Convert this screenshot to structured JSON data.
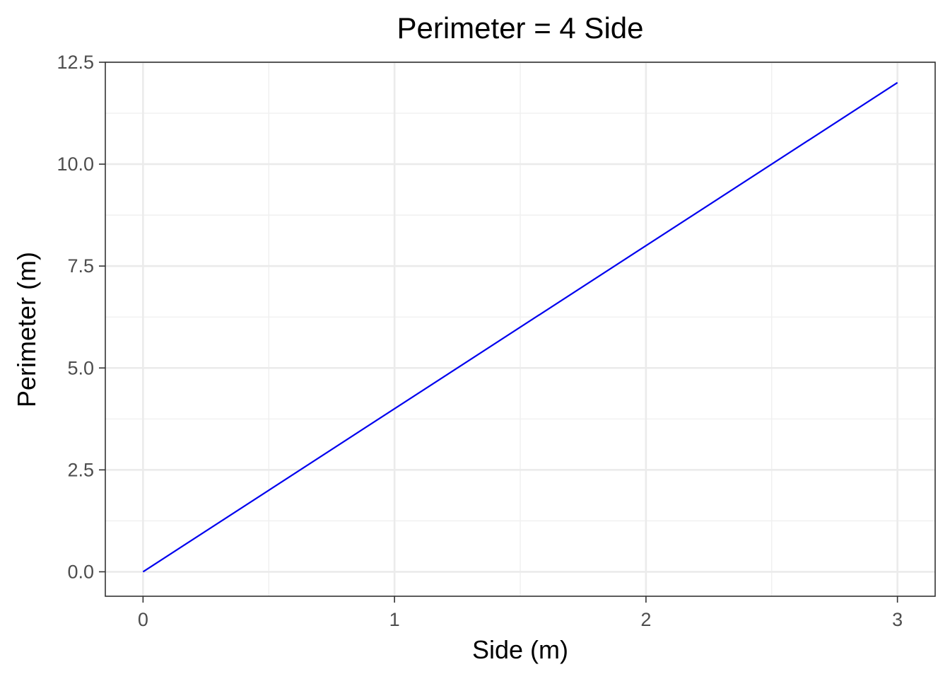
{
  "chart_data": {
    "type": "line",
    "title": "Perimeter = 4 Side",
    "xlabel": "Side (m)",
    "ylabel": "Perimeter (m)",
    "xlim": [
      -0.15,
      3.15
    ],
    "ylim": [
      -0.6,
      12.5
    ],
    "x_ticks": [
      0,
      1,
      2,
      3
    ],
    "x_tick_labels": [
      "0",
      "1",
      "2",
      "3"
    ],
    "y_ticks": [
      0,
      2.5,
      5,
      7.5,
      10,
      12.5
    ],
    "y_tick_labels": [
      "0.0",
      "2.5",
      "5.0",
      "7.5",
      "10.0",
      "12.5"
    ],
    "x_minor_ticks": [
      0.5,
      1.5,
      2.5
    ],
    "y_minor_ticks": [
      1.25,
      3.75,
      6.25,
      8.75,
      11.25
    ],
    "grid": true,
    "series": [
      {
        "color": "#0000ee",
        "x": [
          0,
          3
        ],
        "y": [
          0,
          12
        ]
      }
    ]
  }
}
